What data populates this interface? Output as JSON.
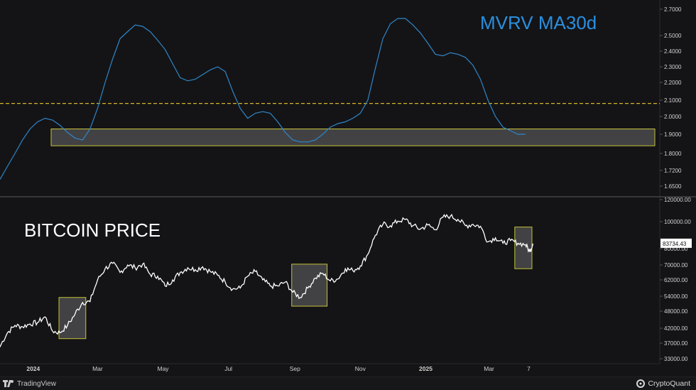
{
  "footer": {
    "tradingview_label": "TradingView",
    "cryptoquant_label": "CryptoQuant"
  },
  "colors": {
    "background": "#141416",
    "mvrv_line": "#2f86c9",
    "mvrv_title": "#2a8fe0",
    "price_line": "#ffffff",
    "reference_line": "#d7b52a",
    "zone_fill": "#4a4a4c",
    "zone_stroke": "#c5c23a",
    "axis_text": "#d0d0d0"
  },
  "chart_data": [
    {
      "type": "line",
      "title": "MVRV MA30d",
      "y_ticks": [
        "1.6500",
        "1.7200",
        "1.8000",
        "1.9000",
        "2.0000",
        "2.1000",
        "2.2000",
        "2.3000",
        "2.4000",
        "2.5000",
        "2.7000"
      ],
      "reference_line": 2.08,
      "highlight_zone": {
        "x_range": [
          "2024-01-05",
          "2025-04-20"
        ],
        "y_range": [
          1.84,
          1.93
        ]
      },
      "series": [
        {
          "x": [
            "2023-12-01",
            "2023-12-08",
            "2023-12-15",
            "2023-12-22",
            "2023-12-29",
            "2024-01-05",
            "2024-01-12",
            "2024-01-19",
            "2024-01-26",
            "2024-02-02",
            "2024-02-09",
            "2024-02-16",
            "2024-02-23",
            "2024-03-01",
            "2024-03-08",
            "2024-03-15",
            "2024-03-22",
            "2024-03-29",
            "2024-04-05",
            "2024-04-12",
            "2024-04-19",
            "2024-04-26",
            "2024-05-03",
            "2024-05-10",
            "2024-05-17",
            "2024-05-24",
            "2024-05-31",
            "2024-06-07",
            "2024-06-14",
            "2024-06-21",
            "2024-06-28",
            "2024-07-05",
            "2024-07-12",
            "2024-07-19",
            "2024-07-26",
            "2024-08-02",
            "2024-08-09",
            "2024-08-16",
            "2024-08-23",
            "2024-08-30",
            "2024-09-06",
            "2024-09-13",
            "2024-09-20",
            "2024-09-27",
            "2024-10-04",
            "2024-10-11",
            "2024-10-18",
            "2024-10-25",
            "2024-11-01",
            "2024-11-08",
            "2024-11-15",
            "2024-11-22",
            "2024-11-29",
            "2024-12-06",
            "2024-12-13",
            "2024-12-20",
            "2024-12-27",
            "2025-01-03",
            "2025-01-10",
            "2025-01-17",
            "2025-01-24",
            "2025-01-31",
            "2025-02-07",
            "2025-02-14",
            "2025-02-21",
            "2025-02-28",
            "2025-03-07",
            "2025-03-14",
            "2025-03-21",
            "2025-03-28",
            "2025-04-04"
          ],
          "values": [
            1.68,
            1.74,
            1.8,
            1.87,
            1.93,
            1.97,
            1.99,
            1.98,
            1.95,
            1.91,
            1.88,
            1.87,
            1.93,
            2.05,
            2.2,
            2.35,
            2.48,
            2.53,
            2.58,
            2.57,
            2.53,
            2.47,
            2.41,
            2.32,
            2.23,
            2.21,
            2.22,
            2.25,
            2.28,
            2.3,
            2.27,
            2.15,
            2.05,
            1.99,
            2.02,
            2.03,
            2.02,
            1.97,
            1.91,
            1.87,
            1.86,
            1.86,
            1.87,
            1.9,
            1.94,
            1.96,
            1.97,
            1.99,
            2.02,
            2.1,
            2.29,
            2.48,
            2.59,
            2.63,
            2.63,
            2.58,
            2.52,
            2.45,
            2.38,
            2.37,
            2.39,
            2.38,
            2.36,
            2.31,
            2.22,
            2.1,
            2.0,
            1.94,
            1.92,
            1.9,
            1.9
          ]
        }
      ]
    },
    {
      "type": "line",
      "title": "BITCOIN PRICE",
      "y_scale": "log",
      "y_ticks": [
        "33000.00",
        "37000.00",
        "42000.00",
        "48000.00",
        "54000.00",
        "62000.00",
        "70000.00",
        "80000.00",
        "100000.00",
        "120000.00"
      ],
      "x_ticks": [
        "2024",
        "Mar",
        "May",
        "Jul",
        "Sep",
        "Nov",
        "2025",
        "Mar",
        "7"
      ],
      "last_price": "83734.43",
      "highlight_zones": [
        {
          "x_range": [
            "2024-01-25",
            "2024-02-19"
          ],
          "y_range": [
            38500,
            53500
          ]
        },
        {
          "x_range": [
            "2024-08-29",
            "2024-10-01"
          ],
          "y_range": [
            50000,
            70500
          ]
        },
        {
          "x_range": [
            "2025-03-25",
            "2025-04-10"
          ],
          "y_range": [
            68000,
            96000
          ]
        }
      ],
      "series": [
        {
          "x": [
            "2023-12-01",
            "2023-12-08",
            "2023-12-15",
            "2023-12-22",
            "2023-12-29",
            "2024-01-05",
            "2024-01-12",
            "2024-01-19",
            "2024-01-26",
            "2024-02-02",
            "2024-02-09",
            "2024-02-16",
            "2024-02-23",
            "2024-03-01",
            "2024-03-08",
            "2024-03-15",
            "2024-03-22",
            "2024-03-29",
            "2024-04-05",
            "2024-04-12",
            "2024-04-19",
            "2024-04-26",
            "2024-05-03",
            "2024-05-10",
            "2024-05-17",
            "2024-05-24",
            "2024-05-31",
            "2024-06-07",
            "2024-06-14",
            "2024-06-21",
            "2024-06-28",
            "2024-07-05",
            "2024-07-12",
            "2024-07-19",
            "2024-07-26",
            "2024-08-02",
            "2024-08-09",
            "2024-08-16",
            "2024-08-23",
            "2024-08-30",
            "2024-09-06",
            "2024-09-13",
            "2024-09-20",
            "2024-09-27",
            "2024-10-04",
            "2024-10-11",
            "2024-10-18",
            "2024-10-25",
            "2024-11-01",
            "2024-11-08",
            "2024-11-15",
            "2024-11-22",
            "2024-11-29",
            "2024-12-06",
            "2024-12-13",
            "2024-12-20",
            "2024-12-27",
            "2025-01-03",
            "2025-01-10",
            "2025-01-17",
            "2025-01-24",
            "2025-01-31",
            "2025-02-07",
            "2025-02-14",
            "2025-02-21",
            "2025-02-28",
            "2025-03-07",
            "2025-03-14",
            "2025-03-21",
            "2025-03-28",
            "2025-04-04",
            "2025-04-08",
            "2025-04-11"
          ],
          "values": [
            36000,
            40500,
            43000,
            42500,
            43500,
            44000,
            46000,
            41000,
            40500,
            43000,
            47000,
            51500,
            51800,
            62000,
            68000,
            71000,
            66000,
            70000,
            68500,
            70500,
            65000,
            64000,
            59000,
            62000,
            66000,
            68500,
            67500,
            69000,
            66500,
            64500,
            61000,
            57500,
            58000,
            64000,
            66500,
            62000,
            59000,
            59000,
            61000,
            56000,
            53500,
            58000,
            63000,
            65500,
            61500,
            62500,
            68000,
            67000,
            69500,
            76500,
            90000,
            98000,
            97000,
            100500,
            102000,
            97000,
            94500,
            97500,
            94000,
            104000,
            105000,
            102000,
            97000,
            98000,
            96500,
            85000,
            88000,
            84000,
            86000,
            84000,
            83000,
            78000,
            83734
          ]
        }
      ]
    }
  ]
}
